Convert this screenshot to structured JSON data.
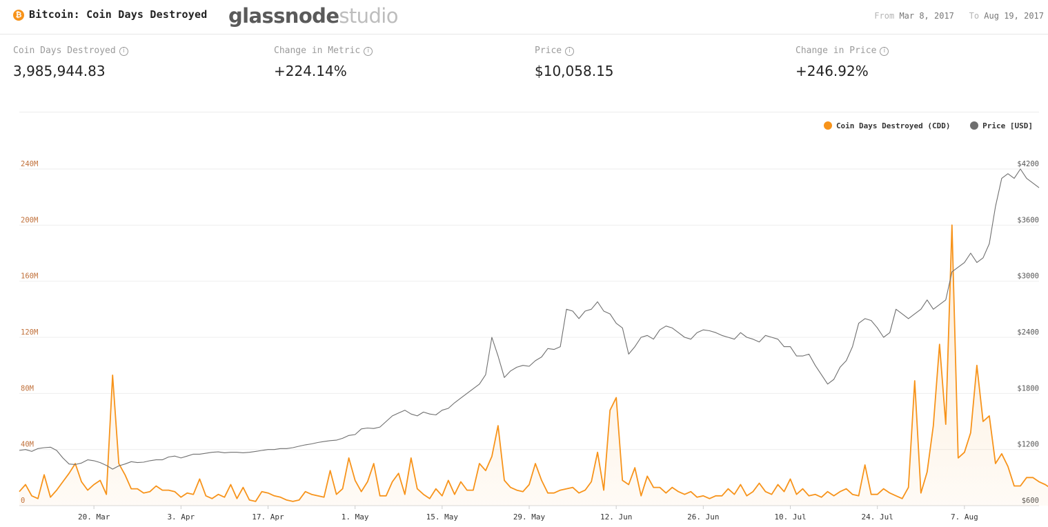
{
  "header": {
    "title": "Bitcoin: Coin Days Destroyed",
    "brand_main": "glassnode",
    "brand_sub": "studio",
    "from_label": "From",
    "from_date": "Mar 8, 2017",
    "to_label": "To",
    "to_date": "Aug 19, 2017"
  },
  "metrics": [
    {
      "label": "Coin Days Destroyed",
      "value": "3,985,944.83"
    },
    {
      "label": "Change in Metric",
      "value": "+224.14%"
    },
    {
      "label": "Price",
      "value": "$10,058.15"
    },
    {
      "label": "Change in Price",
      "value": "+246.92%"
    }
  ],
  "colors": {
    "cdd": "#f7931a",
    "price": "#6f6f6f",
    "grid": "#eeeeee",
    "btc": "#f7931a"
  },
  "chart_data": {
    "type": "line",
    "x_start": "2017-03-08",
    "x_end": "2017-08-19",
    "x_tick_labels": [
      "20. Mar",
      "3. Apr",
      "17. Apr",
      "1. May",
      "15. May",
      "29. May",
      "12. Jun",
      "26. Jun",
      "10. Jul",
      "24. Jul",
      "7. Aug"
    ],
    "x_tick_dates": [
      "2017-03-20",
      "2017-04-03",
      "2017-04-17",
      "2017-05-01",
      "2017-05-15",
      "2017-05-29",
      "2017-06-12",
      "2017-06-26",
      "2017-07-10",
      "2017-07-24",
      "2017-08-07"
    ],
    "y_left": {
      "ticks": [
        "0",
        "40M",
        "80M",
        "120M",
        "160M",
        "200M",
        "240M"
      ],
      "range": [
        0,
        240000000
      ]
    },
    "y_right": {
      "ticks": [
        "$600",
        "$1200",
        "$1800",
        "$2400",
        "$3000",
        "$3600",
        "$4200"
      ],
      "range": [
        600,
        4200
      ]
    },
    "grid": true,
    "legend_position": "top-right",
    "series": [
      {
        "name": "Coin Days Destroyed (CDD)",
        "axis": "left",
        "values_millions": [
          10.0,
          15.0,
          7.0,
          5.0,
          22.0,
          6.0,
          11.0,
          17.0,
          23.0,
          30.0,
          17.0,
          11.0,
          15.0,
          18.0,
          8.0,
          93.0,
          30.0,
          22.0,
          12.0,
          12.0,
          9.0,
          10.0,
          14.0,
          11.0,
          11.0,
          10.0,
          6.0,
          9.0,
          8.0,
          19.0,
          7.0,
          5.0,
          8.0,
          6.0,
          15.0,
          5.0,
          13.0,
          4.0,
          3.0,
          10.0,
          9.0,
          7.0,
          6.0,
          4.0,
          3.0,
          4.0,
          10.0,
          8.0,
          7.0,
          6.0,
          25.0,
          8.0,
          12.0,
          34.0,
          18.0,
          10.0,
          17.0,
          30.0,
          7.0,
          7.0,
          17.0,
          23.0,
          8.0,
          34.0,
          12.0,
          8.0,
          5.0,
          12.0,
          7.0,
          18.0,
          8.0,
          17.0,
          11.0,
          11.0,
          30.0,
          25.0,
          35.0,
          57.0,
          18.0,
          13.0,
          11.0,
          10.0,
          15.0,
          30.0,
          18.0,
          9.0,
          9.0,
          11.0,
          12.0,
          13.0,
          9.0,
          11.0,
          17.0,
          38.0,
          11.0,
          68.0,
          77.0,
          18.0,
          15.0,
          27.0,
          7.0,
          21.0,
          13.0,
          13.0,
          9.0,
          13.0,
          10.0,
          8.0,
          10.0,
          6.0,
          7.0,
          5.0,
          7.0,
          7.0,
          12.0,
          8.0,
          15.0,
          7.0,
          10.0,
          16.0,
          10.0,
          8.0,
          15.0,
          10.0,
          19.0,
          8.0,
          12.0,
          7.0,
          8.0,
          6.0,
          10.0,
          7.0,
          10.0,
          12.0,
          8.0,
          7.0,
          29.0,
          8.0,
          8.0,
          12.0,
          9.0,
          7.0,
          5.0,
          13.0,
          89.0,
          9.0,
          24.0,
          57.0,
          115.0,
          58.0,
          200.0,
          34.0,
          38.0,
          52.0,
          100.0,
          60.0,
          64.0,
          30.0,
          37.0,
          28.0,
          14.0,
          14.0,
          20.0,
          20.0,
          17.0,
          15.0,
          12.0,
          20.0,
          25.0,
          28.0,
          34.0,
          20.0
        ]
      },
      {
        "name": "Price [USD]",
        "axis": "right",
        "values": [
          1190,
          1200,
          1180,
          1210,
          1220,
          1225,
          1190,
          1110,
          1045,
          1040,
          1055,
          1090,
          1080,
          1060,
          1030,
          990,
          1025,
          1045,
          1070,
          1060,
          1065,
          1080,
          1090,
          1090,
          1120,
          1130,
          1110,
          1130,
          1150,
          1150,
          1160,
          1170,
          1175,
          1165,
          1170,
          1170,
          1165,
          1170,
          1180,
          1190,
          1200,
          1200,
          1210,
          1210,
          1220,
          1235,
          1250,
          1260,
          1275,
          1285,
          1295,
          1300,
          1320,
          1350,
          1360,
          1420,
          1430,
          1425,
          1440,
          1500,
          1560,
          1590,
          1620,
          1580,
          1560,
          1600,
          1580,
          1570,
          1620,
          1640,
          1700,
          1750,
          1800,
          1850,
          1900,
          2000,
          2400,
          2200,
          1970,
          2040,
          2080,
          2100,
          2090,
          2150,
          2190,
          2280,
          2270,
          2300,
          2700,
          2680,
          2600,
          2680,
          2700,
          2780,
          2680,
          2650,
          2550,
          2500,
          2220,
          2300,
          2400,
          2420,
          2380,
          2480,
          2520,
          2500,
          2450,
          2400,
          2380,
          2450,
          2480,
          2470,
          2450,
          2420,
          2400,
          2380,
          2450,
          2400,
          2380,
          2350,
          2420,
          2400,
          2380,
          2300,
          2300,
          2200,
          2200,
          2220,
          2100,
          2000,
          1900,
          1950,
          2080,
          2150,
          2300,
          2550,
          2600,
          2580,
          2500,
          2400,
          2450,
          2700,
          2650,
          2600,
          2650,
          2700,
          2800,
          2700,
          2750,
          2800,
          3100,
          3150,
          3200,
          3300,
          3200,
          3250,
          3400,
          3800,
          4100,
          4150,
          4100,
          4200,
          4100,
          4050,
          4000
        ]
      }
    ]
  }
}
